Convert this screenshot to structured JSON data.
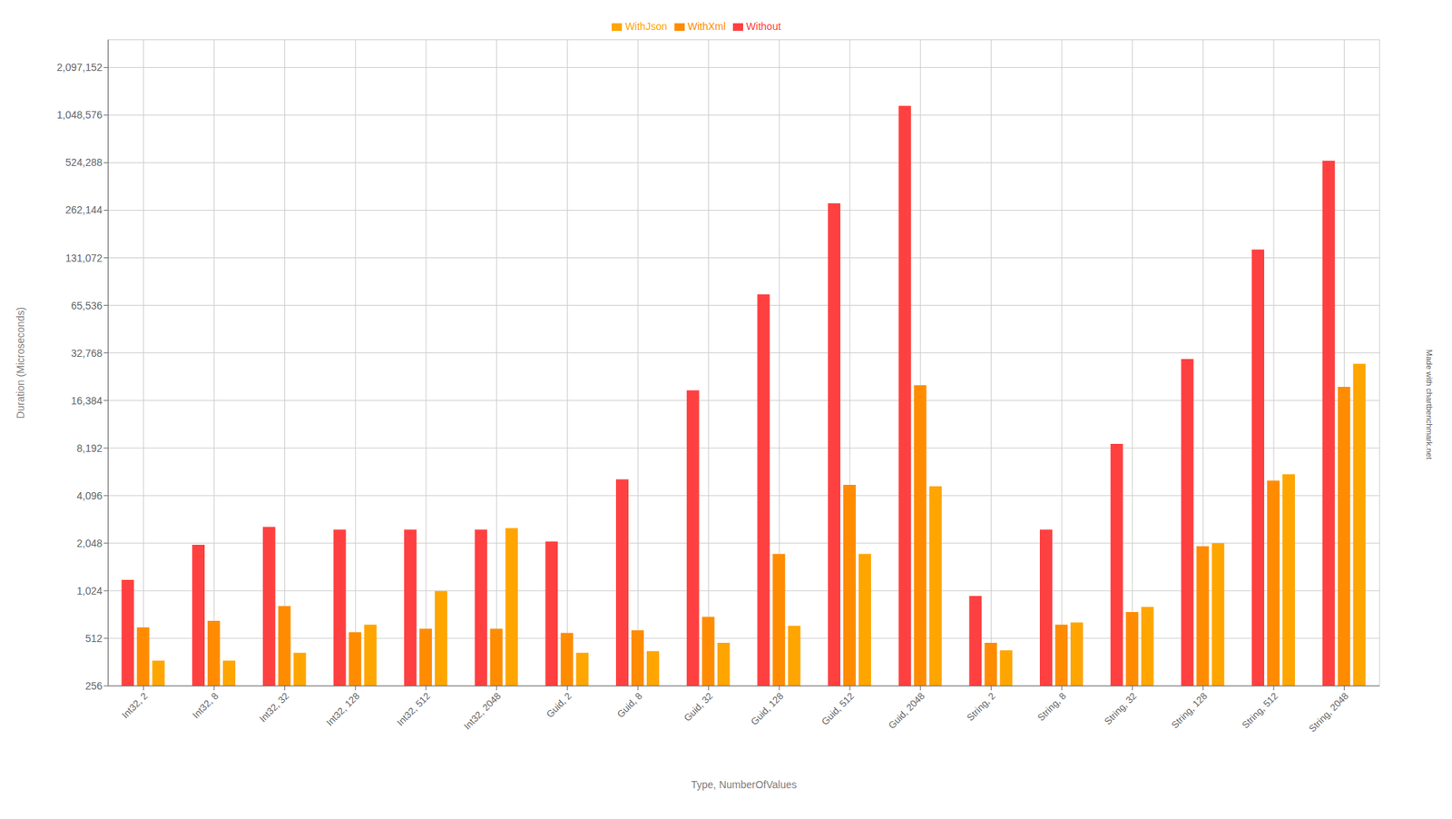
{
  "chart_data": {
    "type": "bar",
    "categories": [
      "Int32, 2",
      "Int32, 8",
      "Int32, 32",
      "Int32, 128",
      "Int32, 512",
      "Int32, 2048",
      "Guid, 2",
      "Guid, 8",
      "Guid, 32",
      "Guid, 128",
      "Guid, 512",
      "Guid, 2048",
      "String, 2",
      "String, 8",
      "String, 32",
      "String, 128",
      "String, 512",
      "String, 2048"
    ],
    "series": [
      {
        "name": "Without",
        "color": "#FF4040",
        "values": [
          1200,
          2000,
          2600,
          2500,
          2500,
          2500,
          2100,
          5200,
          19000,
          77000,
          290000,
          1200000,
          950,
          2500,
          8700,
          30000,
          148000,
          540000
        ]
      },
      {
        "name": "WithXml",
        "color": "#FF8C00",
        "values": [
          600,
          660,
          820,
          560,
          590,
          590,
          555,
          575,
          700,
          1750,
          4800,
          20500,
          480,
          625,
          750,
          1960,
          5100,
          20000
        ]
      },
      {
        "name": "WithJson",
        "color": "#FFA500",
        "values": [
          370,
          370,
          415,
          625,
          1020,
          2550,
          415,
          425,
          480,
          615,
          1750,
          4700,
          430,
          645,
          810,
          2050,
          5600,
          28000
        ]
      }
    ],
    "xlabel": "Type, NumberOfValues",
    "ylabel": "Duration (Microseconds)",
    "log": "y",
    "ylim": [
      256,
      3145728
    ],
    "yticks": [
      256,
      512,
      {
        "value": 1024,
        "label": "1,024"
      },
      {
        "value": 2048,
        "label": "2,048"
      },
      {
        "value": 4096,
        "label": "4,096"
      },
      {
        "value": 8192,
        "label": "8,192"
      },
      {
        "value": 16384,
        "label": "16,384"
      },
      {
        "value": 32768,
        "label": "32,768"
      },
      {
        "value": 65536,
        "label": "65,536"
      },
      {
        "value": 131072,
        "label": "131,072"
      },
      {
        "value": 262144,
        "label": "262,144"
      },
      {
        "value": 524288,
        "label": "524,288"
      },
      {
        "value": 1048576,
        "label": "1,048,576"
      },
      {
        "value": 2097152,
        "label": "2,097,152"
      }
    ],
    "grid": true,
    "legend": "top",
    "annotations": [
      "Made with chartbenchmark.net"
    ]
  }
}
